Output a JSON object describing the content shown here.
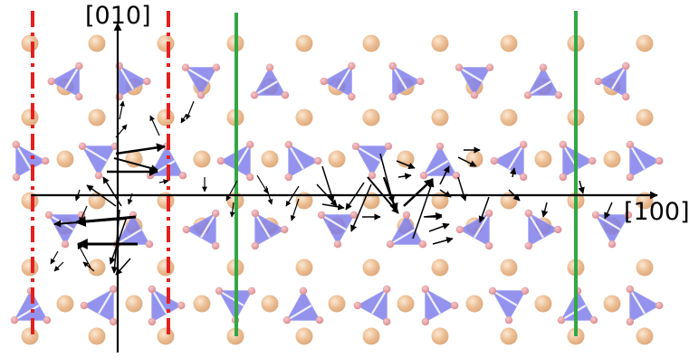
{
  "axes": {
    "vertical_label": "[010]",
    "horizontal_label": "[100]"
  },
  "colors": {
    "tetrahedron": "#7b7bea",
    "tetrahedron_edge": "#9a9af2",
    "oxygen": "#e59a9e",
    "cation": "#e9b98a",
    "cation_highlight": "#f8e0c4",
    "boundary_red": "#e41f1f",
    "boundary_green": "#32a844",
    "arrow": "#000000"
  }
}
